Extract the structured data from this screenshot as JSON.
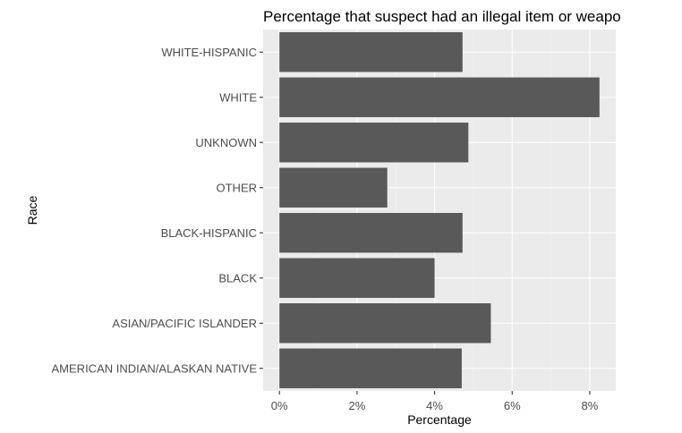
{
  "chart_data": {
    "type": "bar",
    "orientation": "horizontal",
    "title": "Percentage that suspect had an illegal item or weapon",
    "xlabel": "Percentage",
    "ylabel": "Race",
    "categories": [
      "AMERICAN INDIAN/ALASKAN NATIVE",
      "ASIAN/PACIFIC ISLANDER",
      "BLACK",
      "BLACK-HISPANIC",
      "OTHER",
      "UNKNOWN",
      "WHITE",
      "WHITE-HISPANIC"
    ],
    "values": [
      4.7,
      5.45,
      4.0,
      4.72,
      2.78,
      4.87,
      8.25,
      4.72
    ],
    "xlim": [
      -0.42,
      8.67
    ],
    "xticks": [
      0,
      2,
      4,
      6,
      8
    ],
    "xtick_labels": [
      "0%",
      "2%",
      "4%",
      "6%",
      "8%"
    ],
    "grid": true,
    "colors": {
      "bar": "#595959",
      "panel": "#ebebeb",
      "grid_major": "#ffffff",
      "grid_minor": "#f5f5f5",
      "text": "#4d4d4d",
      "title": "#000000"
    }
  }
}
